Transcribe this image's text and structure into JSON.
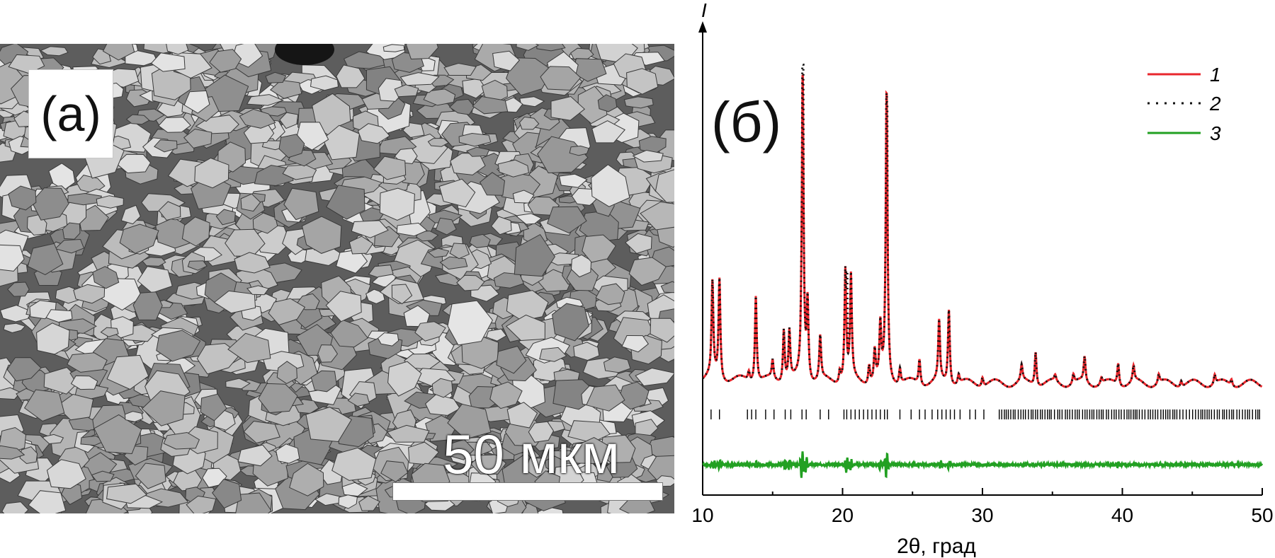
{
  "panel_a": {
    "tag": "(а)",
    "scale_bar_label": "50 мкм"
  },
  "panel_b": {
    "tag": "(б)"
  },
  "chart_data": {
    "type": "line",
    "title": "",
    "xlabel": "2θ, град",
    "ylabel": "I",
    "xlim": [
      10,
      50
    ],
    "xticks": [
      10,
      20,
      30,
      40,
      50
    ],
    "xtick_labels": [
      "10",
      "20",
      "30",
      "40",
      "50"
    ],
    "legend_position": "top-right",
    "colors": {
      "series1": "#e8262c",
      "series2": "#111111",
      "series3": "#22a022"
    },
    "series": [
      {
        "name": "1",
        "style": "solid",
        "color": "#e8262c"
      },
      {
        "name": "2",
        "style": "dotted",
        "color": "#111111"
      },
      {
        "name": "3",
        "style": "solid",
        "color": "#22a022"
      }
    ],
    "peaks": [
      {
        "x": 10.7,
        "h": 0.3
      },
      {
        "x": 11.2,
        "h": 0.32
      },
      {
        "x": 13.3,
        "h": 0.03
      },
      {
        "x": 13.8,
        "h": 0.28
      },
      {
        "x": 15.0,
        "h": 0.06
      },
      {
        "x": 15.8,
        "h": 0.17
      },
      {
        "x": 16.2,
        "h": 0.16
      },
      {
        "x": 17.15,
        "h": 0.98
      },
      {
        "x": 17.5,
        "h": 0.25
      },
      {
        "x": 18.4,
        "h": 0.14
      },
      {
        "x": 19.8,
        "h": 0.04
      },
      {
        "x": 20.2,
        "h": 0.36
      },
      {
        "x": 20.6,
        "h": 0.33
      },
      {
        "x": 21.9,
        "h": 0.06
      },
      {
        "x": 22.3,
        "h": 0.1
      },
      {
        "x": 22.7,
        "h": 0.17
      },
      {
        "x": 23.15,
        "h": 0.93
      },
      {
        "x": 24.1,
        "h": 0.05
      },
      {
        "x": 25.5,
        "h": 0.08
      },
      {
        "x": 26.9,
        "h": 0.19
      },
      {
        "x": 27.6,
        "h": 0.24
      },
      {
        "x": 28.3,
        "h": 0.03
      },
      {
        "x": 30.0,
        "h": 0.03
      },
      {
        "x": 32.8,
        "h": 0.05
      },
      {
        "x": 33.8,
        "h": 0.11
      },
      {
        "x": 35.2,
        "h": 0.02
      },
      {
        "x": 36.5,
        "h": 0.03
      },
      {
        "x": 37.3,
        "h": 0.08
      },
      {
        "x": 38.5,
        "h": 0.02
      },
      {
        "x": 39.7,
        "h": 0.07
      },
      {
        "x": 40.8,
        "h": 0.05
      },
      {
        "x": 42.6,
        "h": 0.03
      },
      {
        "x": 44.2,
        "h": 0.02
      },
      {
        "x": 46.6,
        "h": 0.03
      },
      {
        "x": 47.8,
        "h": 0.02
      }
    ],
    "peak_width_2theta": 0.12,
    "background_level": 0.04,
    "dotted_overshoot": [
      {
        "x": 17.15,
        "h": 1.06
      },
      {
        "x": 20.3,
        "h": 0.4
      },
      {
        "x": 23.15,
        "h": 0.94
      },
      {
        "x": 39.7,
        "h": 0.09
      }
    ],
    "bragg_ticks": [
      10.6,
      11.2,
      13.2,
      13.5,
      13.8,
      14.5,
      15.1,
      15.9,
      16.3,
      17.1,
      17.4,
      18.4,
      19.0,
      20.1,
      20.3,
      20.6,
      20.9,
      21.2,
      21.5,
      21.8,
      22.1,
      22.4,
      22.7,
      23.0,
      23.2,
      24.1,
      24.9,
      25.5,
      25.9,
      26.4,
      26.8,
      27.1,
      27.4,
      27.7,
      28.0,
      28.4,
      29.1,
      29.5,
      30.1
    ],
    "bragg_dense_range": [
      31.2,
      49.9
    ],
    "residual_features": [
      {
        "x": 10.8,
        "a": 0.3
      },
      {
        "x": 11.2,
        "a": 0.3
      },
      {
        "x": 13.8,
        "a": 0.25
      },
      {
        "x": 15.9,
        "a": 0.3
      },
      {
        "x": 16.2,
        "a": 0.3
      },
      {
        "x": 17.1,
        "a": 1.0
      },
      {
        "x": 17.4,
        "a": 0.5
      },
      {
        "x": 20.3,
        "a": 0.55
      },
      {
        "x": 20.6,
        "a": 0.35
      },
      {
        "x": 22.7,
        "a": 0.3
      },
      {
        "x": 23.15,
        "a": 0.85
      },
      {
        "x": 27.0,
        "a": 0.25
      },
      {
        "x": 27.6,
        "a": 0.25
      },
      {
        "x": 39.7,
        "a": 0.15
      }
    ]
  }
}
